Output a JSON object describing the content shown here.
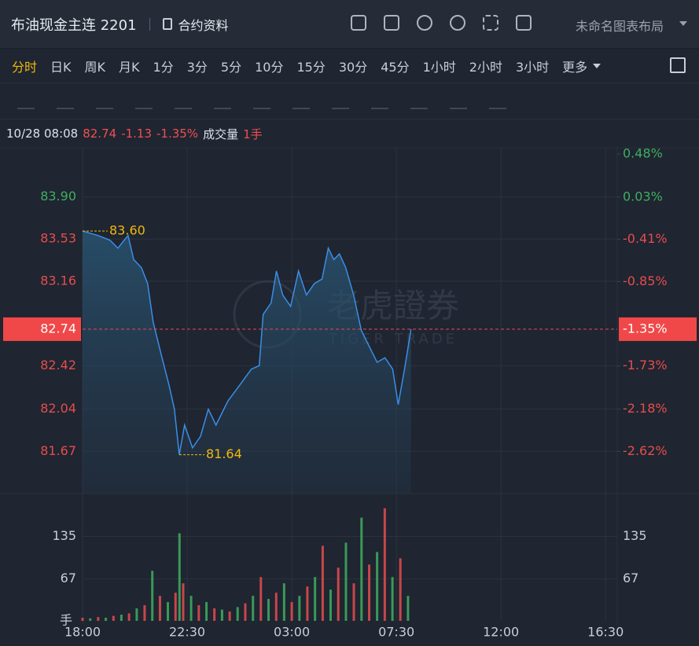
{
  "header": {
    "title": "布油现金主连 2201",
    "contract_info": "合约资料",
    "layout_name": "未命名图表布局"
  },
  "timeframes": {
    "items": [
      "分时",
      "日K",
      "周K",
      "月K",
      "1分",
      "3分",
      "5分",
      "10分",
      "15分",
      "30分",
      "45分",
      "1小时",
      "2小时",
      "3小时",
      "更多"
    ],
    "active": 0
  },
  "info": {
    "time": "10/28 08:08",
    "price": "82.74",
    "change": "-1.13",
    "change_pct": "-1.35%",
    "volume_label": "成交量",
    "volume": "1手"
  },
  "watermark": {
    "brand_cn": "老虎證券",
    "brand_en": "TIGER TRADE"
  },
  "chart_data": {
    "type": "line",
    "x": [
      0,
      0.34,
      0.68,
      1.18,
      1.52,
      1.79,
      1.96,
      2.2,
      2.53,
      2.8,
      3.04,
      3.38,
      3.72,
      3.95,
      4.16,
      4.39,
      4.73,
      5.07,
      5.41,
      5.74,
      6.25,
      6.76,
      7.26,
      7.6,
      7.77,
      8.11,
      8.34,
      8.61,
      8.95,
      9.29,
      9.63,
      9.97,
      10.3,
      10.57,
      10.81,
      11.05,
      11.32,
      11.66,
      11.99,
      12.33,
      12.67,
      13.01,
      13.34,
      13.58,
      13.85,
      14.13
    ],
    "series": [
      {
        "name": "布油现金主连 2201",
        "color": "#3a8ee6",
        "values": [
          83.6,
          83.58,
          83.56,
          83.52,
          83.45,
          83.52,
          83.56,
          83.35,
          83.28,
          83.14,
          82.8,
          82.52,
          82.25,
          82.04,
          81.64,
          81.9,
          81.7,
          81.8,
          82.04,
          81.9,
          82.11,
          82.25,
          82.39,
          82.42,
          82.87,
          82.97,
          83.25,
          83.04,
          82.94,
          83.25,
          83.04,
          83.14,
          83.18,
          83.45,
          83.35,
          83.4,
          83.28,
          83.04,
          82.73,
          82.59,
          82.45,
          82.49,
          82.39,
          82.08,
          82.39,
          82.74
        ]
      }
    ],
    "xlim": [
      0,
      23
    ],
    "xticks": [
      {
        "value": 0,
        "label": "18:00"
      },
      {
        "value": 4.5,
        "label": "22:30"
      },
      {
        "value": 9,
        "label": "03:00"
      },
      {
        "value": 13.5,
        "label": "07:30"
      },
      {
        "value": 18,
        "label": "12:00"
      },
      {
        "value": 22.5,
        "label": "16:30"
      }
    ],
    "ylim": [
      81.3,
      84.33
    ],
    "yticks": [
      {
        "value": 83.9,
        "label": "83.90"
      },
      {
        "value": 83.53,
        "label": "83.53"
      },
      {
        "value": 83.16,
        "label": "83.16"
      },
      {
        "value": 82.42,
        "label": "82.42"
      },
      {
        "value": 82.04,
        "label": "82.04"
      },
      {
        "value": 81.67,
        "label": "81.67"
      }
    ],
    "y2lim": [
      -3.06,
      0.545
    ],
    "y2ticks": [
      {
        "value": 0.48,
        "label": "0.48%"
      },
      {
        "value": 0.03,
        "label": "0.03%"
      },
      {
        "value": -0.41,
        "label": "-0.41%"
      },
      {
        "value": -0.85,
        "label": "-0.85%"
      },
      {
        "value": -1.73,
        "label": "-1.73%"
      },
      {
        "value": -2.18,
        "label": "-2.18%"
      },
      {
        "value": -2.62,
        "label": "-2.62%"
      }
    ],
    "current": {
      "value": 82.74,
      "label": "82.74",
      "pct": -1.35,
      "pct_label": "-1.35%"
    },
    "high": {
      "x": 0,
      "value": 83.6,
      "label": "83.60"
    },
    "low": {
      "x": 4.16,
      "value": 81.64,
      "label": "81.64"
    },
    "grid": true,
    "up_color": "#e54d4d",
    "down_color": "#3fae5f",
    "volume": {
      "x": [
        0,
        0.33,
        0.67,
        1,
        1.33,
        1.67,
        2,
        2.33,
        2.67,
        3,
        3.33,
        3.67,
        4,
        4.17,
        4.33,
        4.67,
        5,
        5.33,
        5.67,
        6,
        6.33,
        6.67,
        7,
        7.33,
        7.67,
        8,
        8.33,
        8.67,
        9,
        9.33,
        9.67,
        10,
        10.33,
        10.67,
        11,
        11.33,
        11.67,
        12,
        12.33,
        12.67,
        13,
        13.33,
        13.67,
        14
      ],
      "values": [
        5,
        4,
        6,
        5,
        8,
        10,
        12,
        20,
        25,
        80,
        40,
        30,
        45,
        140,
        60,
        40,
        25,
        30,
        20,
        18,
        15,
        22,
        28,
        40,
        70,
        35,
        45,
        60,
        30,
        40,
        55,
        70,
        120,
        50,
        85,
        125,
        60,
        165,
        90,
        110,
        180,
        70,
        100,
        40
      ],
      "ylim": [
        0,
        201
      ],
      "yticks": [
        135,
        67
      ],
      "unit": "手"
    }
  }
}
